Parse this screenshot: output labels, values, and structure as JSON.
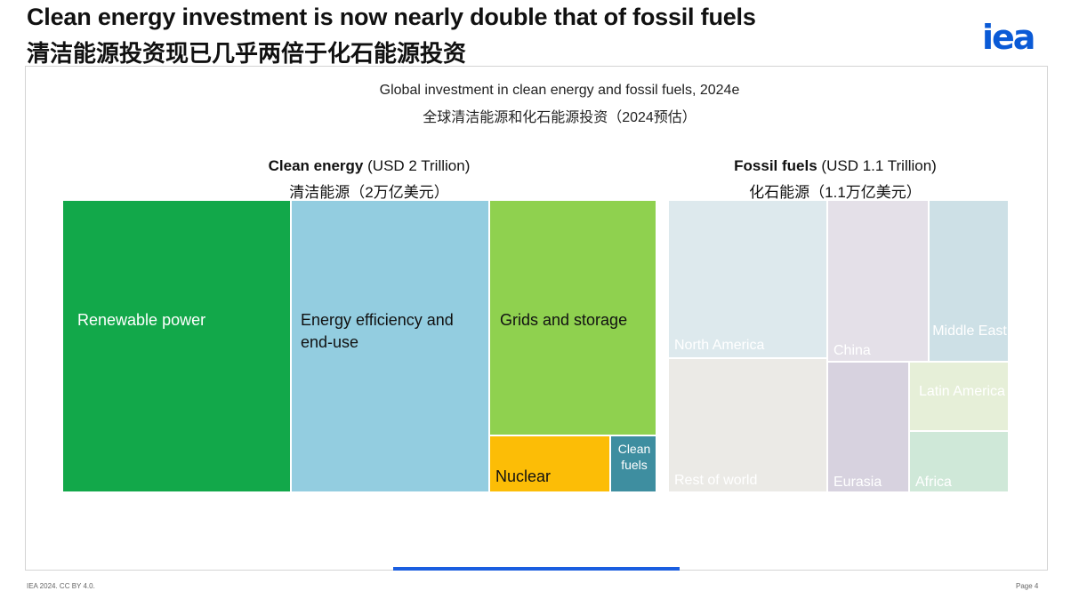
{
  "header": {
    "title_en": "Clean energy investment is now nearly double that of fossil fuels",
    "title_zh": "清洁能源投资现已几乎两倍于化石能源投资",
    "logo": "iea"
  },
  "footer": {
    "credit": "IEA 2024. CC BY 4.0.",
    "page": "Page 4"
  },
  "colors": {
    "renewable": "#12a84a",
    "efficiency": "#93cde0",
    "grids": "#8fd14f",
    "nuclear": "#fcbd06",
    "clean_fuels": "#3e8ea0",
    "progress": "#1a5ee0"
  },
  "chart_data": {
    "type": "treemap",
    "title": "Global investment in clean energy and fossil fuels, 2024e",
    "title_zh": "全球清洁能源和化石能源投资（2024预估）",
    "groups": [
      {
        "name": "Clean energy",
        "amount": "(USD 2 Trillion)",
        "name_zh": "清洁能源（2万亿美元）",
        "total": 2.0,
        "items": [
          {
            "label": "Renewable power",
            "color": "#12a84a",
            "text_color": "#ffffff"
          },
          {
            "label": "Energy efficiency and end-use",
            "color": "#93cde0",
            "text_color": "#111111"
          },
          {
            "label": "Grids and storage",
            "color": "#8fd14f",
            "text_color": "#111111"
          },
          {
            "label": "Nuclear",
            "color": "#fcbd06",
            "text_color": "#111111"
          },
          {
            "label": "Clean fuels",
            "color": "#3e8ea0",
            "text_color": "#ffffff"
          }
        ]
      },
      {
        "name": "Fossil fuels",
        "amount": "(USD 1.1 Trillion)",
        "name_zh": "化石能源（1.1万亿美元）",
        "total": 1.1,
        "items": [
          {
            "label": "North America",
            "color": "#dde9ed",
            "text_color": "#ffffff"
          },
          {
            "label": "Rest of world",
            "color": "#ebeae6",
            "text_color": "#ffffff"
          },
          {
            "label": "China",
            "color": "#e4e0e8",
            "text_color": "#ffffff"
          },
          {
            "label": "Middle East",
            "color": "#cde0e6",
            "text_color": "#ffffff"
          },
          {
            "label": "Eurasia",
            "color": "#d7d2df",
            "text_color": "#ffffff"
          },
          {
            "label": "Latin America",
            "color": "#e6efd8",
            "text_color": "#ffffff"
          },
          {
            "label": "Africa",
            "color": "#cfe8d8",
            "text_color": "#ffffff"
          }
        ]
      }
    ]
  }
}
